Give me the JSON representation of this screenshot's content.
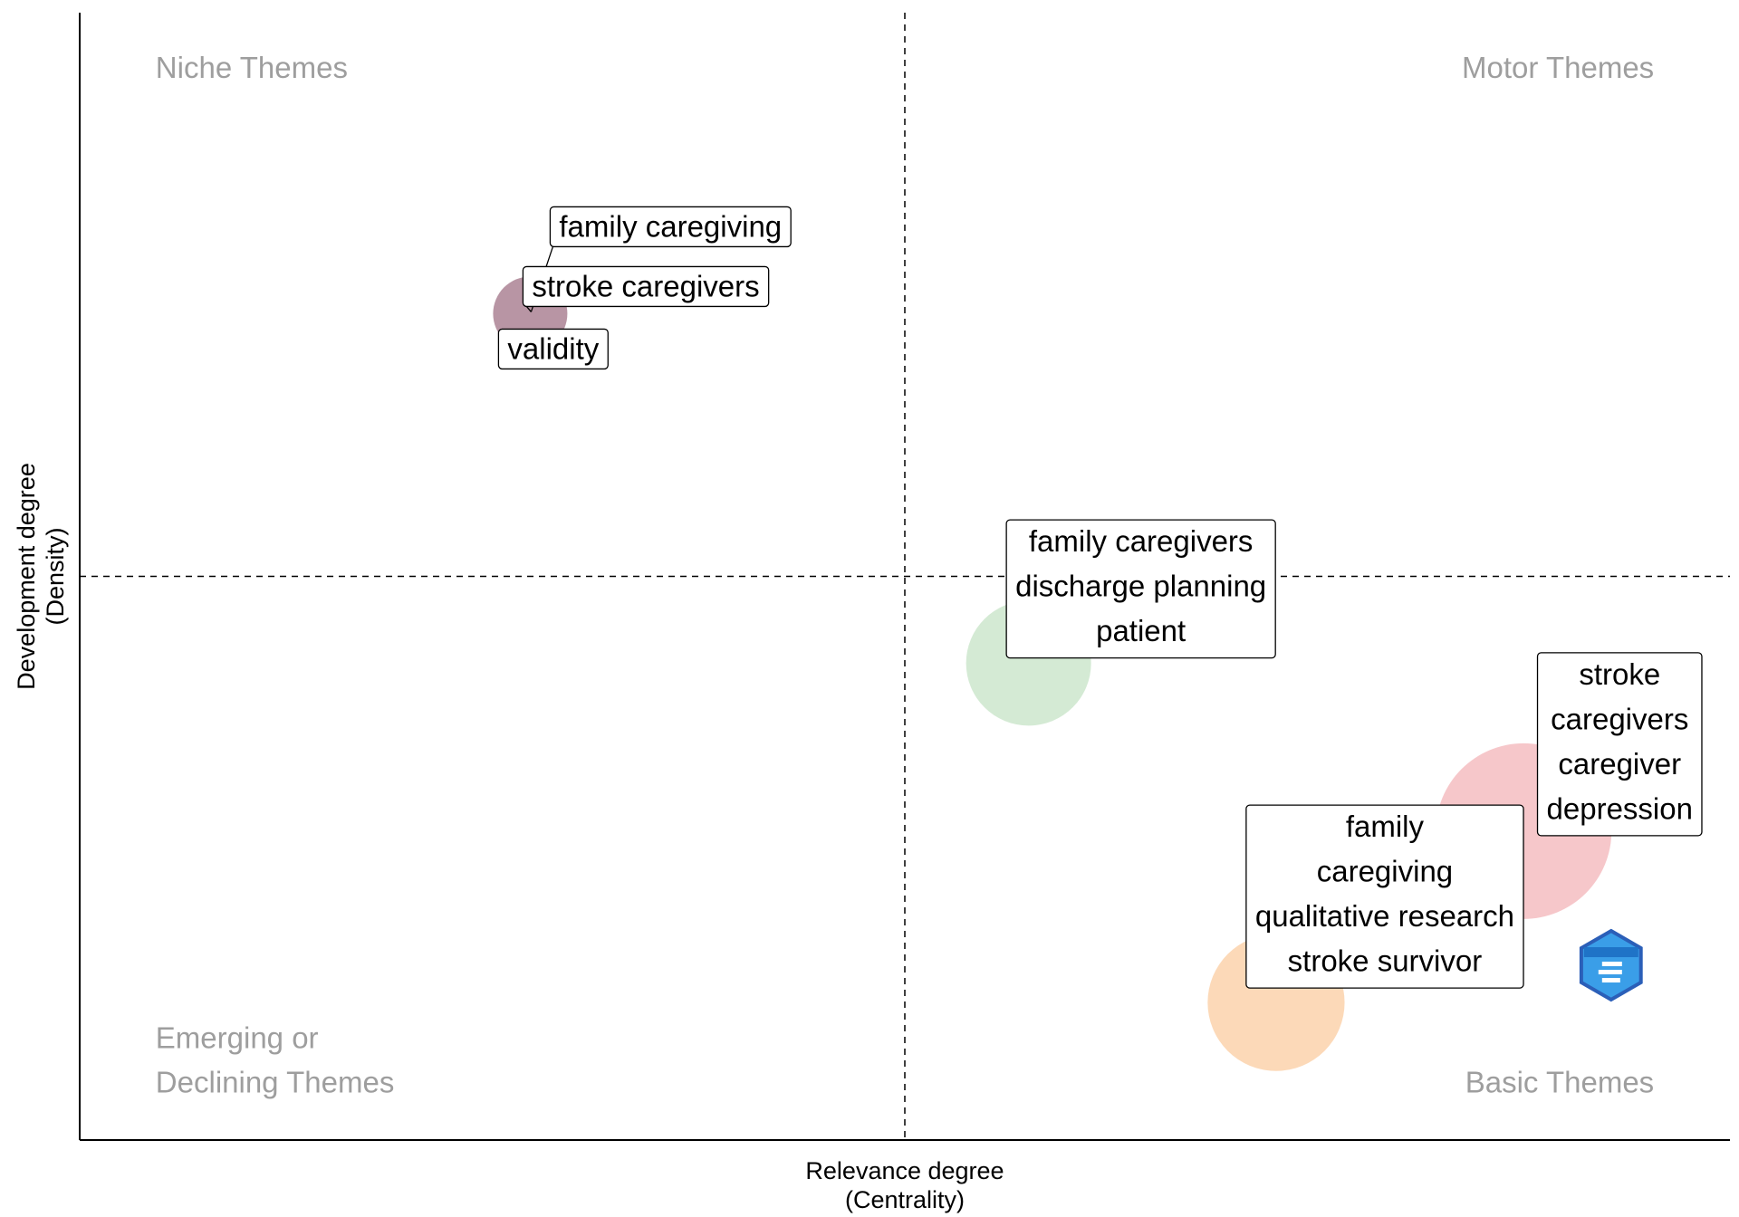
{
  "chart_data": {
    "type": "scatter",
    "subtype": "thematic-map",
    "xlabel": [
      "Relevance degree",
      "(Centrality)"
    ],
    "ylabel": [
      "Development degree",
      "(Density)"
    ],
    "xlim": [
      0,
      1
    ],
    "ylim": [
      0,
      1
    ],
    "x_threshold": 0.5,
    "y_threshold": 0.5,
    "grid": false,
    "legend": "none",
    "quadrants": [
      {
        "name": "niche",
        "lines": [
          "Niche Themes"
        ],
        "align": "left",
        "vpos": "top"
      },
      {
        "name": "motor",
        "lines": [
          "Motor Themes"
        ],
        "align": "right",
        "vpos": "top"
      },
      {
        "name": "emerging",
        "lines": [
          "Emerging or",
          "Declining Themes"
        ],
        "align": "left",
        "vpos": "bottom"
      },
      {
        "name": "basic",
        "lines": [
          "Basic Themes"
        ],
        "align": "right",
        "vpos": "bottom"
      }
    ],
    "clusters": [
      {
        "x": 0.273,
        "y": 0.733,
        "size": 1,
        "color": "#b08a9a",
        "opacity": 0.9,
        "labels": [
          "family caregiving",
          "stroke caregivers",
          "validity"
        ],
        "label_style": "repel"
      },
      {
        "x": 0.575,
        "y": 0.423,
        "size": 4,
        "color": "#cfe8cf",
        "opacity": 0.9,
        "labels": [
          "family caregivers",
          "discharge planning",
          "patient"
        ],
        "label_style": "stacked"
      },
      {
        "x": 0.875,
        "y": 0.274,
        "size": 9,
        "color": "#f4b9bd",
        "opacity": 0.8,
        "labels": [
          "stroke",
          "caregivers",
          "caregiver",
          "depression"
        ],
        "label_style": "stacked"
      },
      {
        "x": 0.725,
        "y": 0.122,
        "size": 5,
        "color": "#fcd2ac",
        "opacity": 0.85,
        "labels": [
          "family",
          "caregiving",
          "qualitative research",
          "stroke survivor"
        ],
        "label_style": "stacked"
      }
    ],
    "logo": "bibliometrix"
  }
}
